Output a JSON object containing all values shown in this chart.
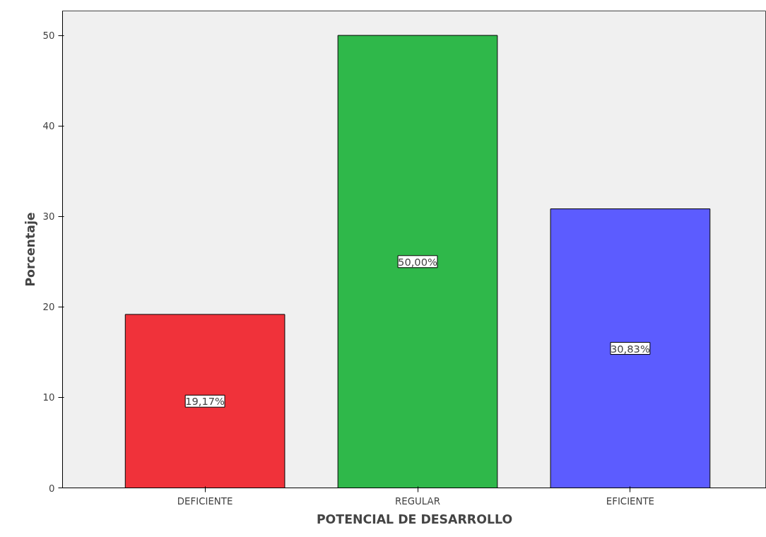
{
  "chart_data": {
    "type": "bar",
    "xlabel": "POTENCIAL DE DESARROLLO",
    "ylabel": "Porcentaje",
    "categories": [
      "DEFICIENTE",
      "REGULAR",
      "EFICIENTE"
    ],
    "values": [
      19.17,
      50.0,
      30.83
    ],
    "colors": [
      "#f0323a",
      "#2fb84a",
      "#5c5cff"
    ],
    "value_labels": [
      "19,17%",
      "50,00%",
      "30,83%"
    ],
    "ylim": [
      0,
      52.7
    ],
    "yticks": [
      0,
      10,
      20,
      30,
      40,
      50
    ],
    "grid": false
  }
}
